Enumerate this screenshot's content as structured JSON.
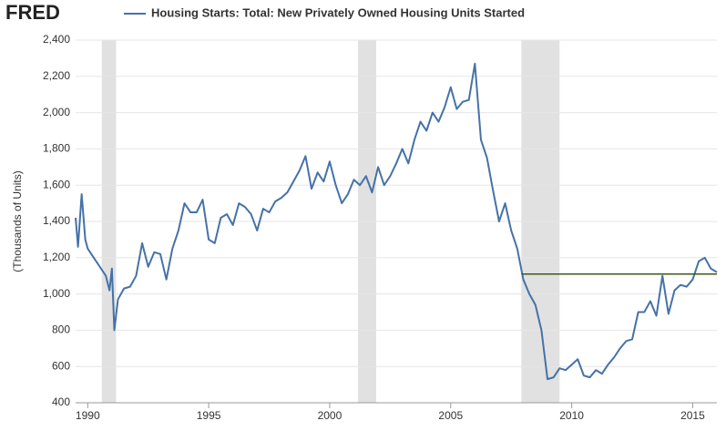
{
  "logo": "FRED",
  "chart_data": {
    "type": "line",
    "y_label": "(Thousands of Units)",
    "xlim": [
      1989.5,
      2016
    ],
    "xticks": [
      1990,
      1995,
      2000,
      2005,
      2010,
      2015
    ],
    "ylim": [
      400,
      2400
    ],
    "yticks": [
      400,
      600,
      800,
      {
        "value": 1000,
        "label": "1,000"
      },
      {
        "value": 1200,
        "label": "1,200"
      },
      {
        "value": 1400,
        "label": "1,400"
      },
      {
        "value": 1600,
        "label": "1,600"
      },
      {
        "value": 1800,
        "label": "1,800"
      },
      {
        "value": 2000,
        "label": "2,000"
      },
      {
        "value": 2200,
        "label": "2,200"
      },
      {
        "value": 2400,
        "label": "2,400"
      }
    ],
    "grid": true,
    "recessions": [
      [
        1990.58,
        1991.17
      ],
      [
        2001.17,
        2001.92
      ],
      [
        2007.92,
        2009.5
      ]
    ],
    "reference_line": {
      "value": 1110,
      "x": [
        2007.92,
        2016
      ],
      "color": "#3a5a1c"
    },
    "x": [
      1989.5,
      1989.6,
      1989.75,
      1989.9,
      1990.0,
      1990.25,
      1990.5,
      1990.75,
      1990.9,
      1991.0,
      1991.1,
      1991.25,
      1991.5,
      1991.75,
      1992.0,
      1992.25,
      1992.5,
      1992.75,
      1993.0,
      1993.25,
      1993.5,
      1993.75,
      1994.0,
      1994.25,
      1994.5,
      1994.75,
      1995.0,
      1995.25,
      1995.5,
      1995.75,
      1996.0,
      1996.25,
      1996.5,
      1996.75,
      1997.0,
      1997.25,
      1997.5,
      1997.75,
      1998.0,
      1998.25,
      1998.5,
      1998.75,
      1999.0,
      1999.25,
      1999.5,
      1999.75,
      2000.0,
      2000.25,
      2000.5,
      2000.75,
      2001.0,
      2001.25,
      2001.5,
      2001.75,
      2002.0,
      2002.25,
      2002.5,
      2002.75,
      2003.0,
      2003.25,
      2003.5,
      2003.75,
      2004.0,
      2004.25,
      2004.5,
      2004.75,
      2005.0,
      2005.25,
      2005.5,
      2005.75,
      2006.0,
      2006.25,
      2006.5,
      2006.75,
      2007.0,
      2007.25,
      2007.5,
      2007.75,
      2008.0,
      2008.25,
      2008.5,
      2008.75,
      2009.0,
      2009.25,
      2009.5,
      2009.75,
      2010.0,
      2010.25,
      2010.5,
      2010.75,
      2011.0,
      2011.25,
      2011.5,
      2011.75,
      2012.0,
      2012.25,
      2012.5,
      2012.75,
      2013.0,
      2013.25,
      2013.5,
      2013.75,
      2014.0,
      2014.25,
      2014.5,
      2014.75,
      2015.0,
      2015.25,
      2015.5,
      2015.75,
      2016.0
    ],
    "series": [
      {
        "name": "Housing Starts: Total: New Privately Owned Housing Units Started",
        "color": "#4572a7",
        "values": [
          1420,
          1260,
          1550,
          1300,
          1250,
          1200,
          1150,
          1100,
          1020,
          1140,
          800,
          970,
          1030,
          1040,
          1100,
          1280,
          1150,
          1230,
          1220,
          1080,
          1250,
          1350,
          1500,
          1450,
          1450,
          1520,
          1300,
          1280,
          1420,
          1440,
          1380,
          1500,
          1480,
          1440,
          1350,
          1470,
          1450,
          1510,
          1530,
          1560,
          1620,
          1680,
          1760,
          1580,
          1670,
          1620,
          1730,
          1600,
          1500,
          1550,
          1630,
          1600,
          1650,
          1560,
          1700,
          1600,
          1650,
          1720,
          1800,
          1720,
          1850,
          1950,
          1900,
          2000,
          1950,
          2030,
          2140,
          2020,
          2060,
          2070,
          2270,
          1850,
          1750,
          1570,
          1400,
          1500,
          1350,
          1250,
          1080,
          1000,
          940,
          800,
          530,
          540,
          590,
          580,
          610,
          640,
          550,
          540,
          580,
          560,
          610,
          650,
          700,
          740,
          750,
          900,
          900,
          960,
          880,
          1100,
          890,
          1020,
          1050,
          1040,
          1080,
          1180,
          1200,
          1140,
          1120
        ]
      }
    ]
  }
}
